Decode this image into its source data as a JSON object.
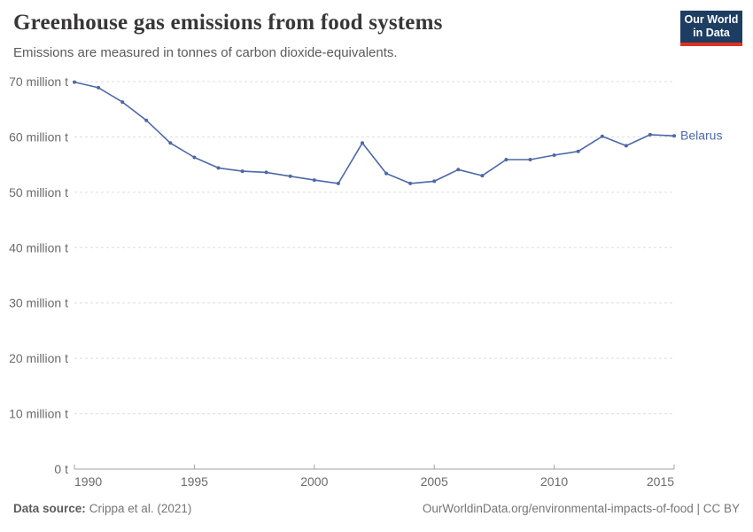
{
  "header": {
    "title": "Greenhouse gas emissions from food systems",
    "subtitle": "Emissions are measured in tonnes of carbon dioxide-equivalents."
  },
  "logo": {
    "line1": "Our World",
    "line2": "in Data",
    "bg_color": "#1d3d63",
    "accent_color": "#e0321f"
  },
  "chart_data": {
    "type": "line",
    "x": [
      1990,
      1991,
      1992,
      1993,
      1994,
      1995,
      1996,
      1997,
      1998,
      1999,
      2000,
      2001,
      2002,
      2003,
      2004,
      2005,
      2006,
      2007,
      2008,
      2009,
      2010,
      2011,
      2012,
      2013,
      2014,
      2015
    ],
    "series": [
      {
        "name": "Belarus",
        "color": "#4d68a8",
        "values": [
          69.9,
          68.9,
          66.3,
          63.0,
          58.9,
          56.3,
          54.4,
          53.8,
          53.6,
          52.9,
          52.2,
          51.6,
          58.9,
          53.4,
          51.6,
          52.0,
          54.1,
          53.0,
          55.9,
          55.9,
          56.7,
          57.4,
          60.1,
          58.4,
          60.4,
          60.2
        ]
      }
    ],
    "title": "Greenhouse gas emissions from food systems",
    "xlabel": "",
    "ylabel": "",
    "xlim": [
      1990,
      2015
    ],
    "ylim": [
      0,
      70
    ],
    "x_ticks": [
      1990,
      1995,
      2000,
      2005,
      2010,
      2015
    ],
    "x_tick_labels": [
      "1990",
      "1995",
      "2000",
      "2005",
      "2010",
      "2015"
    ],
    "y_ticks": [
      0,
      10,
      20,
      30,
      40,
      50,
      60,
      70
    ],
    "y_tick_labels": [
      "0 t",
      "10 million t",
      "20 million t",
      "30 million t",
      "40 million t",
      "50 million t",
      "60 million t",
      "70 million t"
    ],
    "grid": "horizontal-dashed",
    "legend_position": "end-of-line-label",
    "colors": {
      "gridline": "#dddddd",
      "axis": "#a1a1a1",
      "tick_label": "#6b6b6b"
    }
  },
  "footer": {
    "datasource_label": "Data source:",
    "datasource_value": "Crippa et al. (2021)",
    "credit": "OurWorldinData.org/environmental-impacts-of-food | CC BY"
  }
}
